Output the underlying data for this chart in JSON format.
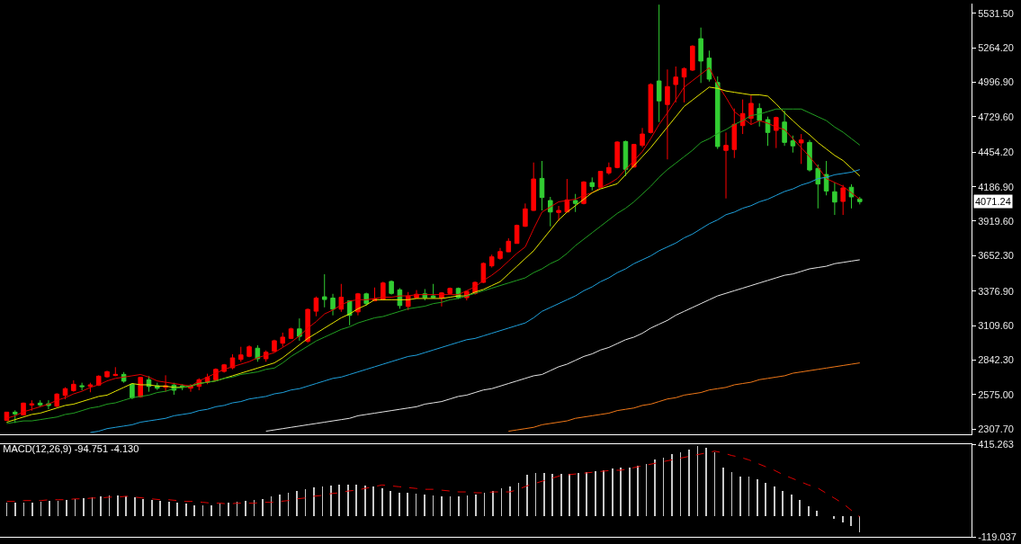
{
  "chart_data": [
    {
      "type": "candlestick",
      "tick_labels": "y",
      "categories": [
        null,
        null,
        null,
        null,
        null,
        null,
        null,
        null,
        null,
        null,
        null,
        null,
        null,
        null,
        null,
        null,
        null,
        null,
        null,
        null,
        null,
        null,
        null,
        null,
        null,
        null,
        null,
        null,
        null,
        null,
        null,
        null,
        null,
        null,
        null,
        null,
        null,
        null,
        null,
        null,
        null,
        null,
        null,
        null,
        null,
        null,
        null,
        null,
        null,
        null,
        null,
        null,
        null,
        null,
        null,
        null,
        null,
        null,
        null,
        null,
        null,
        null,
        null,
        null,
        null,
        null,
        null,
        null,
        null,
        null,
        null,
        null,
        null,
        null,
        null,
        null,
        null,
        null,
        null,
        null,
        null,
        null,
        null,
        null,
        null,
        null,
        null,
        null,
        null,
        null,
        null,
        null,
        null,
        null,
        null,
        null,
        null,
        null,
        null,
        null,
        null,
        null,
        null
      ],
      "ohlc": [
        [
          2375,
          2440,
          2370,
          2438
        ],
        [
          2438,
          2452,
          2354,
          2424
        ],
        [
          2416,
          2512,
          2412,
          2508
        ],
        [
          2493,
          2530,
          2449,
          2503
        ],
        [
          2508,
          2530,
          2479,
          2494
        ],
        [
          2503,
          2530,
          2461,
          2489
        ],
        [
          2484,
          2585,
          2475,
          2578
        ],
        [
          2568,
          2631,
          2538,
          2620
        ],
        [
          2605,
          2685,
          2596,
          2654
        ],
        [
          2643,
          2666,
          2608,
          2636
        ],
        [
          2638,
          2666,
          2592,
          2650
        ],
        [
          2648,
          2724,
          2641,
          2717
        ],
        [
          2712,
          2759,
          2705,
          2752
        ],
        [
          2722,
          2787,
          2717,
          2731
        ],
        [
          2731,
          2749,
          2666,
          2678
        ],
        [
          2655,
          2660,
          2538,
          2550
        ],
        [
          2558,
          2712,
          2550,
          2708
        ],
        [
          2689,
          2717,
          2596,
          2637
        ],
        [
          2643,
          2666,
          2610,
          2624
        ],
        [
          2631,
          2724,
          2596,
          2643
        ],
        [
          2648,
          2666,
          2573,
          2608
        ],
        [
          2643,
          2655,
          2608,
          2631
        ],
        [
          2624,
          2655,
          2596,
          2643
        ],
        [
          2638,
          2701,
          2608,
          2689
        ],
        [
          2672,
          2736,
          2655,
          2708
        ],
        [
          2689,
          2778,
          2685,
          2770
        ],
        [
          2754,
          2812,
          2745,
          2805
        ],
        [
          2782,
          2887,
          2770,
          2859
        ],
        [
          2847,
          2945,
          2829,
          2882
        ],
        [
          2871,
          2957,
          2864,
          2945
        ],
        [
          2934,
          2957,
          2829,
          2852
        ],
        [
          2852,
          2917,
          2829,
          2903
        ],
        [
          2910,
          3000,
          2905,
          2992
        ],
        [
          2973,
          3055,
          2945,
          3020
        ],
        [
          3010,
          3093,
          3005,
          3084
        ],
        [
          3084,
          3165,
          2992,
          3026
        ],
        [
          2988,
          3242,
          2975,
          3235
        ],
        [
          3221,
          3335,
          3182,
          3323
        ],
        [
          3333,
          3508,
          3251,
          3312
        ],
        [
          3323,
          3356,
          3189,
          3237
        ],
        [
          3237,
          3433,
          3216,
          3330
        ],
        [
          3302,
          3305,
          3112,
          3189
        ],
        [
          3216,
          3363,
          3189,
          3356
        ],
        [
          3356,
          3365,
          3265,
          3280
        ],
        [
          3302,
          3405,
          3298,
          3316
        ],
        [
          3309,
          3450,
          3305,
          3440
        ],
        [
          3452,
          3460,
          3350,
          3359
        ],
        [
          3387,
          3400,
          3240,
          3265
        ],
        [
          3258,
          3370,
          3230,
          3340
        ],
        [
          3325,
          3385,
          3320,
          3353
        ],
        [
          3356,
          3393,
          3305,
          3326
        ],
        [
          3340,
          3433,
          3320,
          3326
        ],
        [
          3323,
          3370,
          3258,
          3363
        ],
        [
          3359,
          3405,
          3352,
          3398
        ],
        [
          3398,
          3405,
          3316,
          3326
        ],
        [
          3326,
          3380,
          3305,
          3375
        ],
        [
          3359,
          3452,
          3350,
          3445
        ],
        [
          3445,
          3600,
          3440,
          3592
        ],
        [
          3573,
          3660,
          3560,
          3643
        ],
        [
          3631,
          3712,
          3620,
          3684
        ],
        [
          3682,
          3787,
          3680,
          3764
        ],
        [
          3747,
          3893,
          3745,
          3887
        ],
        [
          3880,
          4057,
          3875,
          4015
        ],
        [
          4003,
          4375,
          4000,
          4247
        ],
        [
          4252,
          4387,
          4003,
          4103
        ],
        [
          4080,
          4108,
          3880,
          3991
        ],
        [
          3987,
          4038,
          3921,
          4003
        ],
        [
          3991,
          4247,
          3990,
          4085
        ],
        [
          4080,
          4131,
          3991,
          4057
        ],
        [
          4057,
          4230,
          4050,
          4224
        ],
        [
          4219,
          4259,
          4159,
          4189
        ],
        [
          4183,
          4310,
          4175,
          4306
        ],
        [
          4294,
          4375,
          4280,
          4336
        ],
        [
          4336,
          4540,
          4330,
          4534
        ],
        [
          4538,
          4545,
          4270,
          4322
        ],
        [
          4340,
          4520,
          4335,
          4515
        ],
        [
          4508,
          4643,
          4492,
          4596
        ],
        [
          4608,
          4990,
          4600,
          4980
        ],
        [
          5008,
          5600,
          4689,
          4853
        ],
        [
          4825,
          5097,
          4399,
          4964
        ],
        [
          4980,
          5120,
          4841,
          5038
        ],
        [
          5038,
          5113,
          4841,
          5104
        ],
        [
          5092,
          5285,
          5085,
          5278
        ],
        [
          5336,
          5422,
          4992,
          5162
        ],
        [
          5185,
          5243,
          5003,
          5022
        ],
        [
          4996,
          5043,
          4480,
          4499
        ],
        [
          4469,
          4608,
          4096,
          4508
        ],
        [
          4476,
          4794,
          4410,
          4671
        ],
        [
          4661,
          4864,
          4596,
          4755
        ],
        [
          4717,
          4895,
          4666,
          4834
        ],
        [
          4794,
          4834,
          4654,
          4701
        ],
        [
          4708,
          4731,
          4504,
          4608
        ],
        [
          4624,
          4731,
          4487,
          4724
        ],
        [
          4689,
          4778,
          4504,
          4531
        ],
        [
          4543,
          4584,
          4452,
          4504
        ],
        [
          4527,
          4596,
          4364,
          4550
        ],
        [
          4531,
          4550,
          4305,
          4317
        ],
        [
          4329,
          4359,
          4019,
          4208
        ],
        [
          4282,
          4387,
          4120,
          4154
        ],
        [
          4148,
          4219,
          3968,
          4068
        ],
        [
          4073,
          4201,
          3968,
          4178
        ],
        [
          4183,
          4206,
          4019,
          4108
        ],
        [
          4092,
          4108,
          4050,
          4071.24
        ]
      ],
      "colors": [
        "#ff0000",
        "#32cd32",
        "#ff0000",
        "#ff0000",
        "#32cd32",
        "#32cd32",
        "#ff0000",
        "#ff0000",
        "#ff0000",
        "#32cd32",
        "#ff0000",
        "#ff0000",
        "#ff0000",
        "#ff0000",
        "#32cd32",
        "#32cd32",
        "#ff0000",
        "#32cd32",
        "#32cd32",
        "#ff0000",
        "#32cd32",
        "#32cd32",
        "#ff0000",
        "#ff0000",
        "#ff0000",
        "#ff0000",
        "#ff0000",
        "#ff0000",
        "#ff0000",
        "#ff0000",
        "#32cd32",
        "#ff0000",
        "#ff0000",
        "#ff0000",
        "#ff0000",
        "#32cd32",
        "#ff0000",
        "#ff0000",
        "#32cd32",
        "#32cd32",
        "#ff0000",
        "#32cd32",
        "#ff0000",
        "#32cd32",
        "#ff0000",
        "#ff0000",
        "#32cd32",
        "#32cd32",
        "#ff0000",
        "#ff0000",
        "#32cd32",
        "#32cd32",
        "#ff0000",
        "#ff0000",
        "#32cd32",
        "#ff0000",
        "#ff0000",
        "#ff0000",
        "#ff0000",
        "#ff0000",
        "#ff0000",
        "#ff0000",
        "#ff0000",
        "#ff0000",
        "#32cd32",
        "#32cd32",
        "#ff0000",
        "#ff0000",
        "#32cd32",
        "#ff0000",
        "#32cd32",
        "#ff0000",
        "#ff0000",
        "#ff0000",
        "#32cd32",
        "#ff0000",
        "#ff0000",
        "#ff0000",
        "#32cd32",
        "#ff0000",
        "#ff0000",
        "#ff0000",
        "#ff0000",
        "#32cd32",
        "#32cd32",
        "#32cd32",
        "#ff0000",
        "#ff0000",
        "#ff0000",
        "#ff0000",
        "#32cd32",
        "#32cd32",
        "#ff0000",
        "#32cd32",
        "#32cd32",
        "#ff0000",
        "#32cd32",
        "#32cd32",
        "#32cd32",
        "#32cd32",
        "#ff0000",
        "#32cd32",
        "#32cd32"
      ],
      "series": [
        {
          "type": "line",
          "color": "#e00000",
          "values": [
            2390,
            2410,
            2440,
            2460,
            2480,
            2500,
            2530,
            2550,
            2580,
            2600,
            2630,
            2650,
            2680,
            2700,
            2710,
            2720,
            2730,
            2710,
            2680,
            2670,
            2660,
            2650,
            2640,
            2680,
            2710,
            2740,
            2770,
            2790,
            2810,
            2830,
            2860,
            2880,
            2900,
            2940,
            2980,
            3030,
            3090,
            3140,
            3200,
            3230,
            3270,
            3300,
            3310,
            3310,
            3320,
            3330,
            3330,
            3340,
            3340,
            3350,
            3350,
            3350,
            3350,
            3350,
            3350,
            3380,
            3410,
            3460,
            3500,
            3550,
            3610,
            3670,
            3720,
            3860,
            3990,
            4030,
            4070,
            4080,
            4090,
            4120,
            4140,
            4180,
            4210,
            4250,
            4320,
            4390,
            4460,
            4560,
            4670,
            4760,
            4860,
            4960,
            5010,
            5060,
            5110,
            4980,
            4880,
            4770,
            4720,
            4670,
            4700,
            4680,
            4650,
            4630,
            4560,
            4490,
            4420,
            4340,
            4250,
            4220,
            4190,
            4140,
            4090
          ]
        },
        {
          "type": "line",
          "color": "#e6e600",
          "values": [
            2360,
            2380,
            2400,
            2420,
            2430,
            2450,
            2470,
            2490,
            2500,
            2520,
            2540,
            2560,
            2570,
            2600,
            2630,
            2660,
            2650,
            2650,
            2640,
            2640,
            2630,
            2630,
            2640,
            2660,
            2670,
            2680,
            2700,
            2720,
            2740,
            2760,
            2780,
            2800,
            2820,
            2860,
            2910,
            2960,
            3010,
            3050,
            3090,
            3130,
            3170,
            3200,
            3240,
            3270,
            3310,
            3310,
            3310,
            3310,
            3310,
            3320,
            3320,
            3320,
            3320,
            3330,
            3340,
            3340,
            3370,
            3390,
            3420,
            3450,
            3510,
            3570,
            3630,
            3690,
            3770,
            3850,
            3930,
            3990,
            4040,
            4090,
            4140,
            4170,
            4190,
            4210,
            4280,
            4350,
            4420,
            4490,
            4570,
            4650,
            4730,
            4810,
            4860,
            4910,
            4960,
            4950,
            4930,
            4920,
            4910,
            4900,
            4900,
            4890,
            4830,
            4760,
            4700,
            4640,
            4590,
            4530,
            4480,
            4430,
            4390,
            4330,
            4270
          ]
        },
        {
          "type": "line",
          "color": "#22a022",
          "values": [
            2350,
            2360,
            2370,
            2370,
            2380,
            2390,
            2400,
            2420,
            2430,
            2450,
            2470,
            2480,
            2500,
            2510,
            2530,
            2550,
            2560,
            2570,
            2590,
            2600,
            2620,
            2630,
            2640,
            2660,
            2670,
            2680,
            2700,
            2710,
            2730,
            2740,
            2750,
            2770,
            2780,
            2820,
            2870,
            2910,
            2950,
            2990,
            3020,
            3050,
            3080,
            3100,
            3130,
            3150,
            3170,
            3180,
            3200,
            3220,
            3240,
            3250,
            3260,
            3280,
            3290,
            3310,
            3320,
            3340,
            3360,
            3380,
            3400,
            3420,
            3440,
            3460,
            3480,
            3520,
            3550,
            3590,
            3620,
            3670,
            3730,
            3780,
            3830,
            3880,
            3930,
            3980,
            4020,
            4070,
            4130,
            4190,
            4260,
            4320,
            4370,
            4420,
            4470,
            4530,
            4560,
            4600,
            4630,
            4670,
            4700,
            4740,
            4750,
            4770,
            4790,
            4790,
            4790,
            4790,
            4760,
            4730,
            4700,
            4650,
            4610,
            4560,
            4510
          ]
        },
        {
          "type": "line",
          "color": "#1ea0dc",
          "values": [
            null,
            null,
            null,
            null,
            null,
            null,
            null,
            null,
            null,
            null,
            2280,
            2290,
            2310,
            2320,
            2330,
            2340,
            2360,
            2370,
            2380,
            2390,
            2410,
            2420,
            2430,
            2450,
            2460,
            2480,
            2490,
            2510,
            2520,
            2540,
            2550,
            2560,
            2580,
            2590,
            2610,
            2620,
            2640,
            2660,
            2680,
            2700,
            2710,
            2730,
            2750,
            2770,
            2790,
            2810,
            2830,
            2850,
            2870,
            2880,
            2900,
            2920,
            2940,
            2960,
            2980,
            3000,
            3010,
            3030,
            3050,
            3070,
            3090,
            3110,
            3130,
            3170,
            3220,
            3250,
            3280,
            3310,
            3340,
            3380,
            3410,
            3450,
            3480,
            3520,
            3550,
            3590,
            3620,
            3650,
            3690,
            3720,
            3750,
            3790,
            3820,
            3860,
            3900,
            3930,
            3970,
            3990,
            4020,
            4040,
            4070,
            4090,
            4120,
            4150,
            4170,
            4200,
            4220,
            4250,
            4260,
            4280,
            4290,
            4300,
            4320
          ]
        },
        {
          "type": "line",
          "color": "#e6e6e6",
          "values": [
            null,
            null,
            null,
            null,
            null,
            null,
            null,
            null,
            null,
            null,
            null,
            null,
            null,
            null,
            null,
            null,
            null,
            null,
            null,
            null,
            null,
            null,
            null,
            null,
            null,
            null,
            null,
            null,
            null,
            null,
            null,
            2290,
            2300,
            2310,
            2320,
            2330,
            2340,
            2350,
            2360,
            2370,
            2380,
            2390,
            2410,
            2420,
            2430,
            2440,
            2450,
            2460,
            2470,
            2480,
            2500,
            2510,
            2520,
            2540,
            2560,
            2570,
            2590,
            2610,
            2620,
            2640,
            2660,
            2680,
            2700,
            2720,
            2730,
            2760,
            2790,
            2810,
            2840,
            2870,
            2890,
            2920,
            2940,
            2970,
            3000,
            3020,
            3050,
            3090,
            3120,
            3150,
            3190,
            3220,
            3250,
            3280,
            3310,
            3340,
            3360,
            3380,
            3400,
            3420,
            3440,
            3460,
            3480,
            3500,
            3510,
            3530,
            3550,
            3560,
            3570,
            3590,
            3600,
            3610,
            3620
          ]
        },
        {
          "type": "line",
          "color": "#f07818",
          "values": [
            null,
            null,
            null,
            null,
            null,
            null,
            null,
            null,
            null,
            null,
            null,
            null,
            null,
            null,
            null,
            null,
            null,
            null,
            null,
            null,
            null,
            null,
            null,
            null,
            null,
            null,
            null,
            null,
            null,
            null,
            null,
            null,
            null,
            null,
            null,
            null,
            null,
            null,
            null,
            null,
            null,
            null,
            null,
            null,
            null,
            null,
            null,
            null,
            null,
            null,
            null,
            null,
            null,
            null,
            null,
            null,
            null,
            null,
            null,
            null,
            2290,
            2300,
            2310,
            2320,
            2340,
            2350,
            2360,
            2370,
            2390,
            2400,
            2410,
            2420,
            2430,
            2450,
            2460,
            2470,
            2490,
            2500,
            2520,
            2540,
            2550,
            2570,
            2580,
            2590,
            2610,
            2620,
            2630,
            2650,
            2660,
            2670,
            2690,
            2700,
            2710,
            2720,
            2740,
            2750,
            2760,
            2770,
            2780,
            2790,
            2800,
            2810,
            2820
          ]
        }
      ],
      "ylim": [
        2266,
        5608
      ],
      "yticks": [
        {
          "value": 5531.5,
          "label": "5531.50"
        },
        {
          "value": 5264.2,
          "label": "5264.20"
        },
        {
          "value": 4996.9,
          "label": "4996.90"
        },
        {
          "value": 4729.6,
          "label": "4729.60"
        },
        {
          "value": 4454.2,
          "label": "4454.20"
        },
        {
          "value": 4186.9,
          "label": "4186.90"
        },
        {
          "value": 3919.6,
          "label": "3919.60"
        },
        {
          "value": 3652.3,
          "label": "3652.30"
        },
        {
          "value": 3376.9,
          "label": "3376.90"
        },
        {
          "value": 3109.6,
          "label": "3109.60"
        },
        {
          "value": 2842.3,
          "label": "2842.30"
        },
        {
          "value": 2575,
          "label": "2575.00"
        },
        {
          "value": 2307.7,
          "label": "2307.70"
        }
      ],
      "annotations": [
        "4071.24"
      ]
    },
    {
      "type": "bar",
      "tick_labels": "y",
      "title": "MACD(12,26,9) -94.751 -4.130",
      "categories": [
        null,
        null,
        null,
        null,
        null,
        null,
        null,
        null,
        null,
        null,
        null,
        null,
        null,
        null,
        null,
        null,
        null,
        null,
        null,
        null,
        null,
        null,
        null,
        null,
        null,
        null,
        null,
        null,
        null,
        null,
        null,
        null,
        null,
        null,
        null,
        null,
        null,
        null,
        null,
        null,
        null,
        null,
        null,
        null,
        null,
        null,
        null,
        null,
        null,
        null,
        null,
        null,
        null,
        null,
        null,
        null,
        null,
        null,
        null,
        null,
        null,
        null,
        null,
        null,
        null,
        null,
        null,
        null,
        null,
        null,
        null,
        null,
        null,
        null,
        null,
        null,
        null,
        null,
        null,
        null,
        null,
        null,
        null,
        null,
        null,
        null,
        null,
        null,
        null,
        null,
        null,
        null,
        null,
        null,
        null,
        null,
        null,
        null,
        null,
        null,
        null
      ],
      "series": [
        {
          "type": "bar",
          "color": "#c8c8c8",
          "values": [
            80,
            80,
            80,
            80,
            83,
            86,
            89,
            95,
            101,
            104,
            110,
            116,
            119,
            119,
            116,
            110,
            101,
            95,
            89,
            83,
            77,
            71,
            65,
            65,
            65,
            71,
            77,
            83,
            89,
            95,
            101,
            113,
            124,
            136,
            148,
            157,
            166,
            172,
            178,
            181,
            184,
            184,
            178,
            172,
            160,
            148,
            136,
            136,
            130,
            124,
            119,
            113,
            113,
            113,
            119,
            124,
            136,
            148,
            160,
            172,
            193,
            237,
            249,
            249,
            246,
            243,
            243,
            249,
            255,
            261,
            267,
            273,
            279,
            281,
            290,
            302,
            326,
            338,
            356,
            367,
            385,
            403,
            397,
            370,
            281,
            252,
            228,
            228,
            213,
            193,
            172,
            148,
            124,
            95,
            59,
            30,
            0,
            -15,
            -36,
            -59,
            -94.751
          ]
        },
        {
          "type": "line",
          "color": "#e00000",
          "line_style": "dashed",
          "values": [
            85,
            85,
            90,
            90,
            90,
            95,
            95,
            95,
            100,
            100,
            105,
            105,
            110,
            110,
            115,
            110,
            105,
            100,
            95,
            95,
            90,
            85,
            85,
            80,
            75,
            75,
            70,
            75,
            75,
            75,
            80,
            80,
            85,
            90,
            100,
            105,
            115,
            120,
            130,
            135,
            145,
            150,
            160,
            170,
            180,
            175,
            170,
            165,
            160,
            155,
            155,
            150,
            145,
            140,
            140,
            135,
            135,
            140,
            140,
            140,
            155,
            175,
            190,
            205,
            220,
            235,
            240,
            245,
            250,
            255,
            260,
            265,
            265,
            275,
            285,
            295,
            305,
            315,
            325,
            335,
            345,
            355,
            365,
            375,
            365,
            350,
            340,
            325,
            305,
            285,
            265,
            240,
            220,
            200,
            180,
            165,
            135,
            105,
            75,
            35,
            -4.13
          ]
        }
      ],
      "ylim": [
        -119.037,
        415.263
      ],
      "yticks": [
        415.263,
        -119.037
      ]
    }
  ]
}
